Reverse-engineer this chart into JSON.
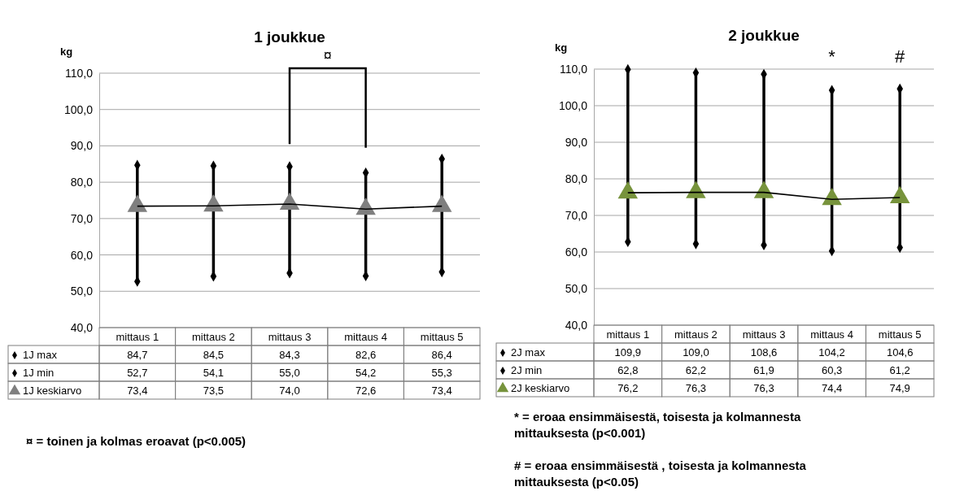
{
  "chart_data": [
    {
      "type": "line",
      "title": "1 joukkue",
      "ylabel": "kg",
      "categories": [
        "mittaus 1",
        "mittaus 2",
        "mittaus 3",
        "mittaus 4",
        "mittaus 5"
      ],
      "ylim": [
        40,
        110
      ],
      "yticks": [
        {
          "value": 40,
          "label": "40,0"
        },
        {
          "value": 50,
          "label": "50,0"
        },
        {
          "value": 60,
          "label": "60,0"
        },
        {
          "value": 70,
          "label": "70,0"
        },
        {
          "value": 80,
          "label": "80,0"
        },
        {
          "value": 90,
          "label": "90,0"
        },
        {
          "value": 100,
          "label": "100,0"
        },
        {
          "value": 110,
          "label": "110,0"
        }
      ],
      "grid": "y",
      "legend": "bottom",
      "series": [
        {
          "name": "1J max",
          "type": "scatter",
          "marker": "diamond",
          "color": "#000000",
          "values": [
            84.7,
            84.5,
            84.3,
            82.6,
            86.4
          ],
          "value_labels": [
            "84,7",
            "84,5",
            "84,3",
            "82,6",
            "86,4"
          ]
        },
        {
          "name": "1J min",
          "type": "scatter",
          "marker": "diamond",
          "color": "#000000",
          "values": [
            52.7,
            54.1,
            55.0,
            54.2,
            55.3
          ],
          "value_labels": [
            "52,7",
            "54,1",
            "55,0",
            "54,2",
            "55,3"
          ]
        },
        {
          "name": "1J keskiarvo",
          "type": "line",
          "marker": "triangle",
          "color": "#7f7f7f",
          "values": [
            73.4,
            73.5,
            74.0,
            72.6,
            73.4
          ],
          "value_labels": [
            "73,4",
            "73,5",
            "74,0",
            "72,6",
            "73,4"
          ]
        }
      ],
      "annotations": [
        "¤",
        "¤ = toinen ja kolmas eroavat  (p<0.005)"
      ]
    },
    {
      "type": "line",
      "title": "2 joukkue",
      "ylabel": "kg",
      "categories": [
        "mittaus 1",
        "mittaus 2",
        "mittaus 3",
        "mittaus 4",
        "mittaus 5"
      ],
      "ylim": [
        40,
        110
      ],
      "yticks": [
        {
          "value": 40,
          "label": "40,0"
        },
        {
          "value": 50,
          "label": "50,0"
        },
        {
          "value": 60,
          "label": "60,0"
        },
        {
          "value": 70,
          "label": "70,0"
        },
        {
          "value": 80,
          "label": "80,0"
        },
        {
          "value": 90,
          "label": "90,0"
        },
        {
          "value": 100,
          "label": "100,0"
        },
        {
          "value": 110,
          "label": "110,0"
        }
      ],
      "grid": "y",
      "legend": "bottom",
      "series": [
        {
          "name": "2J max",
          "type": "scatter",
          "marker": "diamond",
          "color": "#000000",
          "values": [
            109.9,
            109.0,
            108.6,
            104.2,
            104.6
          ],
          "value_labels": [
            "109,9",
            "109,0",
            "108,6",
            "104,2",
            "104,6"
          ]
        },
        {
          "name": "2J min",
          "type": "scatter",
          "marker": "diamond",
          "color": "#000000",
          "values": [
            62.8,
            62.2,
            61.9,
            60.3,
            61.2
          ],
          "value_labels": [
            "62,8",
            "62,2",
            "61,9",
            "60,3",
            "61,2"
          ]
        },
        {
          "name": "2J keskiarvo",
          "type": "line",
          "marker": "triangle",
          "color": "#77933c",
          "values": [
            76.2,
            76.3,
            76.3,
            74.4,
            74.9
          ],
          "value_labels": [
            "76,2",
            "76,3",
            "76,3",
            "74,4",
            "74,9"
          ]
        }
      ],
      "annotations": [
        "*",
        "#",
        "* = eroaa ensimmäisestä, toisesta ja kolmannesta mittauksesta (p<0.001)",
        "# = eroaa ensimmäisestä , toisesta ja kolmannesta mittauksesta (p<0.05)"
      ]
    }
  ]
}
